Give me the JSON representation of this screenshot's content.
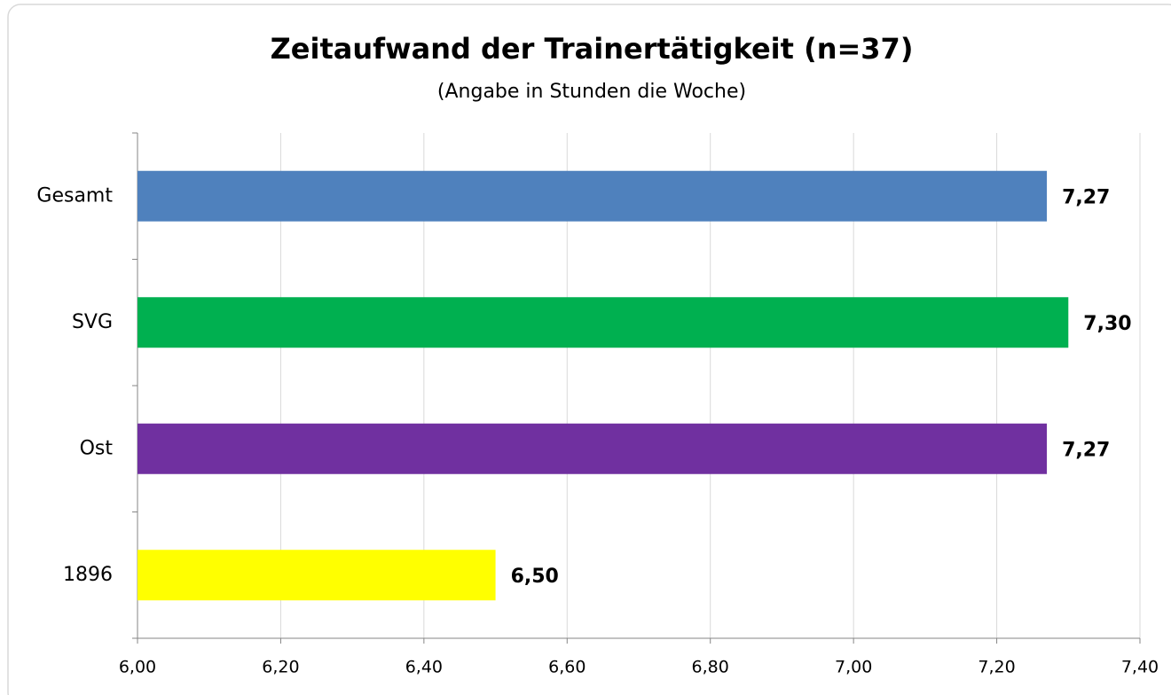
{
  "chart_data": {
    "type": "bar",
    "orientation": "horizontal",
    "title": "Zeitaufwand der Trainertätigkeit (n=37)",
    "subtitle": "(Angabe in Stunden die Woche)",
    "categories": [
      "Gesamt",
      "SVG",
      "Ost",
      "1896"
    ],
    "values": [
      7.27,
      7.3,
      7.27,
      6.5
    ],
    "value_labels": [
      "7,27",
      "7,30",
      "7,27",
      "6,50"
    ],
    "colors": [
      "#4f81bd",
      "#00b050",
      "#7030a0",
      "#ffff00"
    ],
    "xlim": [
      6.0,
      7.4
    ],
    "xticks": [
      {
        "value": 6.0,
        "label": "6,00"
      },
      {
        "value": 6.2,
        "label": "6,20"
      },
      {
        "value": 6.4,
        "label": "6,40"
      },
      {
        "value": 6.6,
        "label": "6,60"
      },
      {
        "value": 6.8,
        "label": "6,80"
      },
      {
        "value": 7.0,
        "label": "7,00"
      },
      {
        "value": 7.2,
        "label": "7,20"
      },
      {
        "value": 7.4,
        "label": "7,40"
      }
    ],
    "grid": true
  }
}
